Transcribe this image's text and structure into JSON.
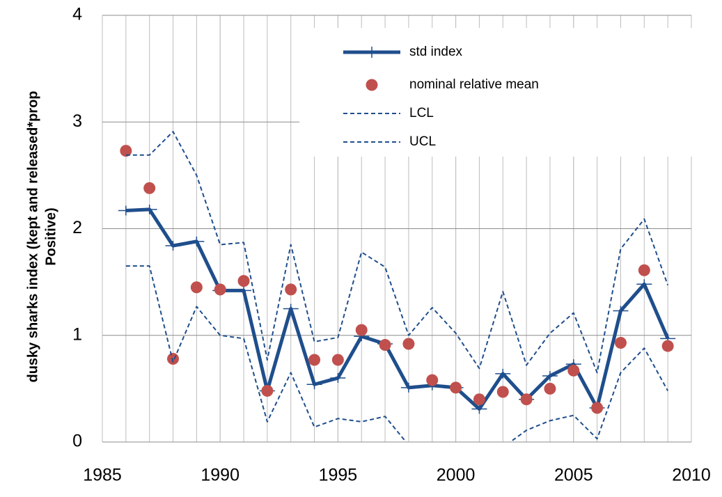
{
  "chart_data": {
    "type": "line",
    "y_label": [
      "dusky  sharks index (kept and released*prop",
      "Positive)"
    ],
    "x": [
      1986,
      1987,
      1988,
      1989,
      1990,
      1991,
      1992,
      1993,
      1994,
      1995,
      1996,
      1997,
      1998,
      1999,
      2000,
      2001,
      2002,
      2003,
      2004,
      2005,
      2006,
      2007,
      2008,
      2009
    ],
    "series": [
      {
        "name": "std index",
        "color": "#1f4e8c",
        "style": "line-plus",
        "values": [
          2.17,
          2.18,
          1.84,
          1.88,
          1.42,
          1.42,
          0.48,
          1.25,
          0.54,
          0.6,
          0.99,
          0.92,
          0.51,
          0.53,
          0.51,
          0.31,
          0.64,
          0.4,
          0.62,
          0.73,
          0.32,
          1.23,
          1.48,
          0.97
        ]
      },
      {
        "name": "nominal relative mean",
        "color": "#c0504d",
        "style": "dots",
        "values": [
          2.73,
          2.38,
          0.78,
          1.45,
          1.43,
          1.51,
          0.48,
          1.43,
          0.77,
          0.77,
          1.05,
          0.91,
          0.92,
          0.58,
          0.51,
          0.4,
          0.47,
          0.4,
          0.5,
          0.67,
          0.32,
          0.93,
          1.61,
          0.9
        ]
      },
      {
        "name": "LCL",
        "color": "#1f4e8c",
        "style": "dashed",
        "values": [
          1.65,
          1.65,
          0.75,
          1.27,
          1.0,
          0.97,
          0.19,
          0.65,
          0.14,
          0.22,
          0.19,
          0.24,
          -0.03,
          -0.1,
          -0.02,
          -0.3,
          -0.05,
          0.11,
          0.2,
          0.25,
          0.03,
          0.65,
          0.88,
          0.48
        ]
      },
      {
        "name": "UCL",
        "color": "#1f4e8c",
        "style": "dashed",
        "values": [
          2.69,
          2.69,
          2.91,
          2.5,
          1.85,
          1.87,
          0.77,
          1.85,
          0.94,
          0.98,
          1.78,
          1.64,
          1.0,
          1.26,
          1.02,
          0.69,
          1.41,
          0.72,
          1.02,
          1.21,
          0.65,
          1.81,
          2.09,
          1.47
        ]
      }
    ],
    "xlim": [
      1985,
      2010
    ],
    "xticks": [
      1985,
      1990,
      1995,
      2000,
      2005,
      2010
    ],
    "ylim": [
      0,
      4
    ],
    "yticks": [
      0,
      1,
      2,
      3,
      4
    ],
    "grid": true
  }
}
